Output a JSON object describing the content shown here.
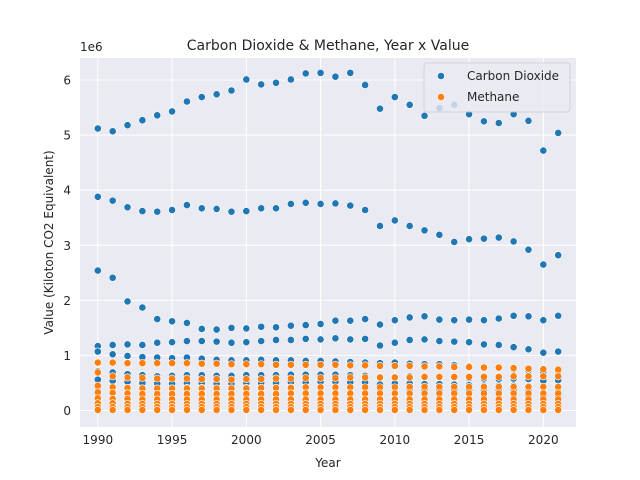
{
  "chart_data": {
    "type": "scatter",
    "title": "Carbon Dioxide & Methane, Year x Value",
    "xlabel": "Year",
    "ylabel": "Value (Kiloton CO2 Equivalent)",
    "y_offset_text": "1e6",
    "xlim": [
      1988.8,
      2022.2
    ],
    "ylim": [
      -300000,
      6400000
    ],
    "x_ticks": [
      1990,
      1995,
      2000,
      2005,
      2010,
      2015,
      2020
    ],
    "y_ticks": [
      0,
      1000000,
      2000000,
      3000000,
      4000000,
      5000000,
      6000000
    ],
    "y_tick_labels": [
      "0",
      "1",
      "2",
      "3",
      "4",
      "5",
      "6"
    ],
    "grid": true,
    "legend_position": "top-right",
    "x": [
      1990,
      1991,
      1992,
      1993,
      1994,
      1995,
      1996,
      1997,
      1998,
      1999,
      2000,
      2001,
      2002,
      2003,
      2004,
      2005,
      2006,
      2007,
      2008,
      2009,
      2010,
      2011,
      2012,
      2013,
      2014,
      2015,
      2016,
      2017,
      2018,
      2019,
      2020,
      2021
    ],
    "series": [
      {
        "name": "Carbon Dioxide",
        "color": "#1f77b4",
        "values": [
          [
            5120000,
            5070000,
            5180000,
            5270000,
            5360000,
            5430000,
            5610000,
            5690000,
            5740000,
            5810000,
            6010000,
            5920000,
            5950000,
            6010000,
            6120000,
            6130000,
            6060000,
            6130000,
            5910000,
            5480000,
            5690000,
            5550000,
            5350000,
            5490000,
            5550000,
            5380000,
            5250000,
            5220000,
            5380000,
            5260000,
            4720000,
            5040000
          ],
          [
            3880000,
            3810000,
            3690000,
            3620000,
            3610000,
            3640000,
            3730000,
            3670000,
            3660000,
            3610000,
            3620000,
            3670000,
            3670000,
            3750000,
            3770000,
            3750000,
            3760000,
            3720000,
            3640000,
            3350000,
            3450000,
            3350000,
            3270000,
            3190000,
            3060000,
            3110000,
            3120000,
            3140000,
            3070000,
            2920000,
            2650000,
            2820000
          ],
          [
            2540000,
            2410000,
            1980000,
            1870000,
            1660000,
            1620000,
            1590000,
            1480000,
            1470000,
            1500000,
            1490000,
            1520000,
            1510000,
            1540000,
            1550000,
            1570000,
            1630000,
            1630000,
            1660000,
            1560000,
            1640000,
            1690000,
            1710000,
            1650000,
            1640000,
            1650000,
            1640000,
            1670000,
            1720000,
            1710000,
            1640000,
            1720000
          ],
          [
            1170000,
            1190000,
            1200000,
            1190000,
            1230000,
            1240000,
            1260000,
            1260000,
            1250000,
            1230000,
            1240000,
            1260000,
            1280000,
            1280000,
            1300000,
            1290000,
            1310000,
            1290000,
            1300000,
            1180000,
            1230000,
            1280000,
            1290000,
            1260000,
            1250000,
            1240000,
            1200000,
            1190000,
            1150000,
            1110000,
            1050000,
            1070000
          ],
          [
            1070000,
            1020000,
            990000,
            970000,
            960000,
            950000,
            960000,
            940000,
            920000,
            910000,
            910000,
            920000,
            910000,
            910000,
            900000,
            900000,
            890000,
            880000,
            870000,
            860000,
            870000,
            850000,
            840000,
            840000,
            820000,
            800000,
            780000,
            770000,
            750000,
            730000,
            700000,
            710000
          ],
          [
            710000,
            690000,
            660000,
            640000,
            620000,
            630000,
            640000,
            640000,
            630000,
            630000,
            640000,
            640000,
            640000,
            650000,
            650000,
            650000,
            650000,
            640000,
            630000,
            590000,
            610000,
            620000,
            620000,
            600000,
            600000,
            590000,
            580000,
            570000,
            580000,
            570000,
            540000,
            550000
          ],
          [
            560000,
            540000,
            520000,
            500000,
            490000,
            490000,
            500000,
            500000,
            490000,
            490000,
            500000,
            500000,
            500000,
            510000,
            510000,
            520000,
            520000,
            510000,
            510000,
            470000,
            490000,
            490000,
            480000,
            480000,
            470000,
            460000,
            450000,
            450000,
            450000,
            440000,
            420000,
            430000
          ],
          [
            420000,
            420000,
            410000,
            400000,
            390000,
            400000,
            410000,
            410000,
            400000,
            400000,
            410000,
            410000,
            410000,
            420000,
            420000,
            420000,
            420000,
            410000,
            410000,
            380000,
            390000,
            390000,
            380000,
            380000,
            370000,
            370000,
            360000,
            360000,
            360000,
            350000,
            330000,
            340000
          ],
          [
            310000,
            310000,
            300000,
            300000,
            300000,
            300000,
            310000,
            310000,
            310000,
            300000,
            310000,
            310000,
            310000,
            320000,
            320000,
            320000,
            320000,
            320000,
            310000,
            290000,
            300000,
            300000,
            300000,
            290000,
            290000,
            290000,
            280000,
            280000,
            280000,
            270000,
            260000,
            270000
          ],
          [
            200000,
            200000,
            190000,
            190000,
            190000,
            200000,
            200000,
            200000,
            200000,
            200000,
            200000,
            200000,
            210000,
            210000,
            210000,
            210000,
            210000,
            210000,
            200000,
            190000,
            200000,
            200000,
            190000,
            190000,
            190000,
            190000,
            180000,
            180000,
            180000,
            170000,
            160000,
            170000
          ],
          [
            90000,
            90000,
            90000,
            90000,
            90000,
            90000,
            90000,
            90000,
            90000,
            90000,
            100000,
            100000,
            100000,
            100000,
            100000,
            100000,
            100000,
            100000,
            100000,
            90000,
            90000,
            90000,
            90000,
            90000,
            90000,
            90000,
            90000,
            90000,
            90000,
            80000,
            80000,
            80000
          ],
          [
            30000,
            30000,
            30000,
            30000,
            30000,
            30000,
            30000,
            30000,
            30000,
            30000,
            30000,
            30000,
            30000,
            30000,
            30000,
            30000,
            30000,
            30000,
            30000,
            30000,
            30000,
            30000,
            30000,
            30000,
            30000,
            30000,
            30000,
            30000,
            30000,
            30000,
            30000,
            30000
          ]
        ]
      },
      {
        "name": "Methane",
        "color": "#ff7f0e",
        "values": [
          [
            870000,
            870000,
            860000,
            860000,
            860000,
            860000,
            860000,
            850000,
            850000,
            840000,
            840000,
            840000,
            830000,
            830000,
            830000,
            830000,
            830000,
            820000,
            820000,
            810000,
            810000,
            810000,
            800000,
            800000,
            790000,
            790000,
            780000,
            780000,
            770000,
            760000,
            750000,
            740000
          ],
          [
            690000,
            620000,
            600000,
            590000,
            580000,
            580000,
            580000,
            570000,
            570000,
            560000,
            570000,
            570000,
            580000,
            580000,
            590000,
            590000,
            590000,
            600000,
            600000,
            600000,
            600000,
            600000,
            610000,
            610000,
            610000,
            610000,
            610000,
            610000,
            620000,
            620000,
            620000,
            620000
          ],
          [
            450000,
            420000,
            410000,
            400000,
            400000,
            400000,
            400000,
            400000,
            400000,
            400000,
            400000,
            410000,
            410000,
            410000,
            420000,
            420000,
            420000,
            420000,
            420000,
            420000,
            420000,
            430000,
            430000,
            430000,
            430000,
            430000,
            430000,
            430000,
            430000,
            430000,
            430000,
            430000
          ],
          [
            330000,
            320000,
            310000,
            300000,
            300000,
            300000,
            300000,
            300000,
            300000,
            300000,
            300000,
            300000,
            300000,
            310000,
            310000,
            310000,
            310000,
            310000,
            310000,
            310000,
            310000,
            310000,
            310000,
            310000,
            310000,
            310000,
            310000,
            310000,
            310000,
            310000,
            310000,
            310000
          ],
          [
            220000,
            210000,
            210000,
            200000,
            200000,
            200000,
            200000,
            200000,
            200000,
            200000,
            200000,
            200000,
            200000,
            200000,
            200000,
            200000,
            200000,
            200000,
            200000,
            200000,
            200000,
            200000,
            200000,
            200000,
            200000,
            200000,
            200000,
            200000,
            200000,
            200000,
            200000,
            200000
          ],
          [
            130000,
            130000,
            120000,
            120000,
            120000,
            120000,
            120000,
            120000,
            120000,
            120000,
            120000,
            120000,
            120000,
            120000,
            120000,
            120000,
            120000,
            120000,
            120000,
            120000,
            120000,
            120000,
            120000,
            120000,
            120000,
            120000,
            120000,
            120000,
            120000,
            120000,
            120000,
            120000
          ],
          [
            60000,
            60000,
            60000,
            60000,
            60000,
            60000,
            60000,
            60000,
            60000,
            60000,
            60000,
            60000,
            60000,
            60000,
            60000,
            60000,
            60000,
            60000,
            60000,
            60000,
            60000,
            60000,
            60000,
            60000,
            60000,
            60000,
            60000,
            60000,
            60000,
            60000,
            60000,
            60000
          ],
          [
            10000,
            10000,
            10000,
            10000,
            10000,
            10000,
            10000,
            10000,
            10000,
            10000,
            10000,
            10000,
            10000,
            10000,
            10000,
            10000,
            10000,
            10000,
            10000,
            10000,
            10000,
            10000,
            10000,
            10000,
            10000,
            10000,
            10000,
            10000,
            10000,
            10000,
            10000,
            10000
          ]
        ]
      }
    ]
  }
}
